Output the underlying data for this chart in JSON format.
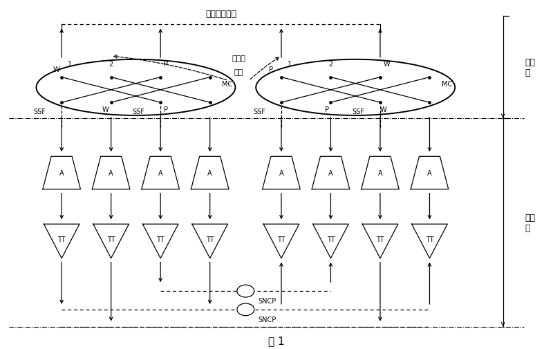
{
  "title": "图 1",
  "bg_color": "#ffffff",
  "top_label": "保护子网连接",
  "external_label_1": "外部的",
  "external_label_2": "命令",
  "right_label_top": "客户\n层",
  "right_label_bottom": "业务\n层",
  "sncp_label": "SNCP",
  "ssf_label": "SSF"
}
